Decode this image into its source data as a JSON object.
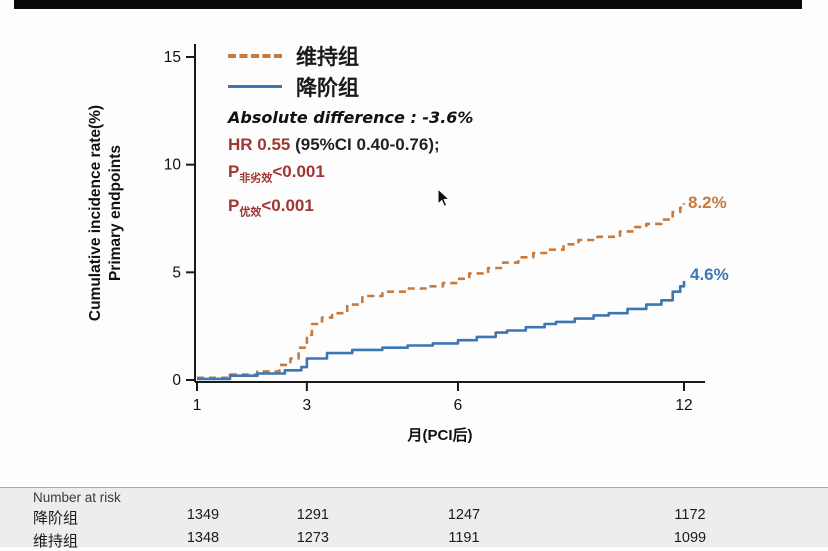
{
  "colors": {
    "maintenance_orange": "#c8793c",
    "deescalation_blue": "#3c77b4",
    "stat_dark_red": "#a03733",
    "axis_black": "#1a1a1a"
  },
  "chart_data": {
    "type": "line",
    "title": "",
    "xlabel": "月(PCI后)",
    "ylabel_line1": "Cumulative incidence rate(%)",
    "ylabel_line2": "Primary endpoints",
    "xlim": [
      1,
      12
    ],
    "ylim": [
      0,
      15
    ],
    "xticks": [
      1,
      3,
      6,
      12
    ],
    "yticks": [
      0,
      5,
      10,
      15
    ],
    "grid": false,
    "legend_position": "top-left-inside",
    "series": [
      {
        "name": "维持组",
        "style": "dashed",
        "color": "#c8793c",
        "end_label": "8.2%",
        "points": [
          [
            1,
            0.1
          ],
          [
            1.6,
            0.25
          ],
          [
            2.1,
            0.4
          ],
          [
            2.5,
            0.7
          ],
          [
            2.7,
            1.0
          ],
          [
            2.85,
            1.5
          ],
          [
            3.0,
            2.1
          ],
          [
            3.1,
            2.6
          ],
          [
            3.3,
            2.9
          ],
          [
            3.5,
            3.1
          ],
          [
            3.8,
            3.5
          ],
          [
            4.1,
            3.9
          ],
          [
            4.5,
            4.1
          ],
          [
            5.0,
            4.25
          ],
          [
            5.4,
            4.35
          ],
          [
            5.7,
            4.5
          ],
          [
            6.0,
            4.7
          ],
          [
            6.3,
            4.95
          ],
          [
            6.8,
            5.2
          ],
          [
            7.2,
            5.45
          ],
          [
            7.6,
            5.7
          ],
          [
            8.0,
            5.9
          ],
          [
            8.4,
            6.05
          ],
          [
            8.8,
            6.3
          ],
          [
            9.2,
            6.5
          ],
          [
            9.7,
            6.65
          ],
          [
            10.3,
            6.9
          ],
          [
            10.7,
            7.1
          ],
          [
            11.0,
            7.25
          ],
          [
            11.4,
            7.45
          ],
          [
            11.7,
            7.8
          ],
          [
            11.9,
            8.0
          ],
          [
            12,
            8.2
          ]
        ]
      },
      {
        "name": "降阶组",
        "style": "solid",
        "color": "#3c77b4",
        "end_label": "4.6%",
        "points": [
          [
            1,
            0.05
          ],
          [
            1.6,
            0.2
          ],
          [
            2.1,
            0.3
          ],
          [
            2.6,
            0.45
          ],
          [
            2.9,
            0.6
          ],
          [
            3.0,
            1.0
          ],
          [
            3.4,
            1.25
          ],
          [
            3.9,
            1.4
          ],
          [
            4.5,
            1.5
          ],
          [
            5.0,
            1.6
          ],
          [
            5.5,
            1.7
          ],
          [
            6.0,
            1.85
          ],
          [
            6.5,
            2.0
          ],
          [
            7.0,
            2.2
          ],
          [
            7.3,
            2.3
          ],
          [
            7.8,
            2.45
          ],
          [
            8.3,
            2.6
          ],
          [
            8.6,
            2.7
          ],
          [
            9.1,
            2.85
          ],
          [
            9.6,
            3.0
          ],
          [
            10.0,
            3.1
          ],
          [
            10.5,
            3.3
          ],
          [
            11.0,
            3.5
          ],
          [
            11.4,
            3.7
          ],
          [
            11.7,
            4.1
          ],
          [
            11.9,
            4.35
          ],
          [
            12,
            4.6
          ]
        ]
      }
    ],
    "annotations": {
      "absolute_difference": "Absolute difference : -3.6%",
      "hr": "HR 0.55",
      "hr_ci": " (95%CI 0.40-0.76);",
      "p_lines": [
        {
          "prefix": "P",
          "sub": "非劣效",
          "value": "<0.001"
        },
        {
          "prefix": "P",
          "sub": "优效",
          "value": "<0.001"
        }
      ]
    }
  },
  "risk_table": {
    "title": "Number at risk",
    "rows": [
      {
        "label": "降阶组",
        "values": [
          "1349",
          "1291",
          "1247",
          "1172"
        ]
      },
      {
        "label": "维持组",
        "values": [
          "1348",
          "1273",
          "1191",
          "1099"
        ]
      }
    ]
  }
}
